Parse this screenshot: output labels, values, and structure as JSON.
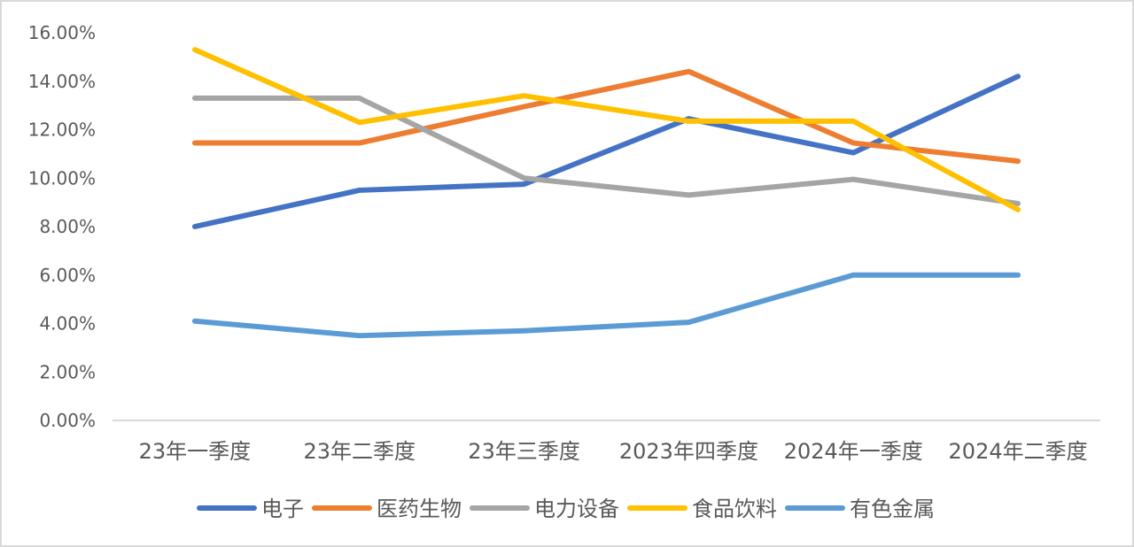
{
  "chart_data": {
    "type": "line",
    "categories": [
      "23年一季度",
      "23年二季度",
      "23年三季度",
      "2023年四季度",
      "2024年一季度",
      "2024年二季度"
    ],
    "y_tick_labels": [
      "0.00%",
      "2.00%",
      "4.00%",
      "6.00%",
      "8.00%",
      "10.00%",
      "12.00%",
      "14.00%",
      "16.00%"
    ],
    "ylim": [
      0,
      16
    ],
    "y_unit": "%",
    "grid": false,
    "legend_position": "bottom",
    "series": [
      {
        "name": "电子",
        "color": "#4472C4",
        "values": [
          8.0,
          9.5,
          9.75,
          12.45,
          11.05,
          14.2
        ]
      },
      {
        "name": "医药生物",
        "color": "#ED7D31",
        "values": [
          11.45,
          11.45,
          12.95,
          14.4,
          11.45,
          10.7
        ]
      },
      {
        "name": "电力设备",
        "color": "#A5A5A5",
        "values": [
          13.3,
          13.3,
          10.0,
          9.3,
          9.95,
          8.95
        ]
      },
      {
        "name": "食品饮料",
        "color": "#FFC000",
        "values": [
          15.3,
          12.3,
          13.4,
          12.35,
          12.35,
          8.7
        ]
      },
      {
        "name": "有色金属",
        "color": "#5B9BD5",
        "values": [
          4.1,
          3.5,
          3.7,
          4.05,
          6.0,
          6.0
        ]
      }
    ]
  }
}
